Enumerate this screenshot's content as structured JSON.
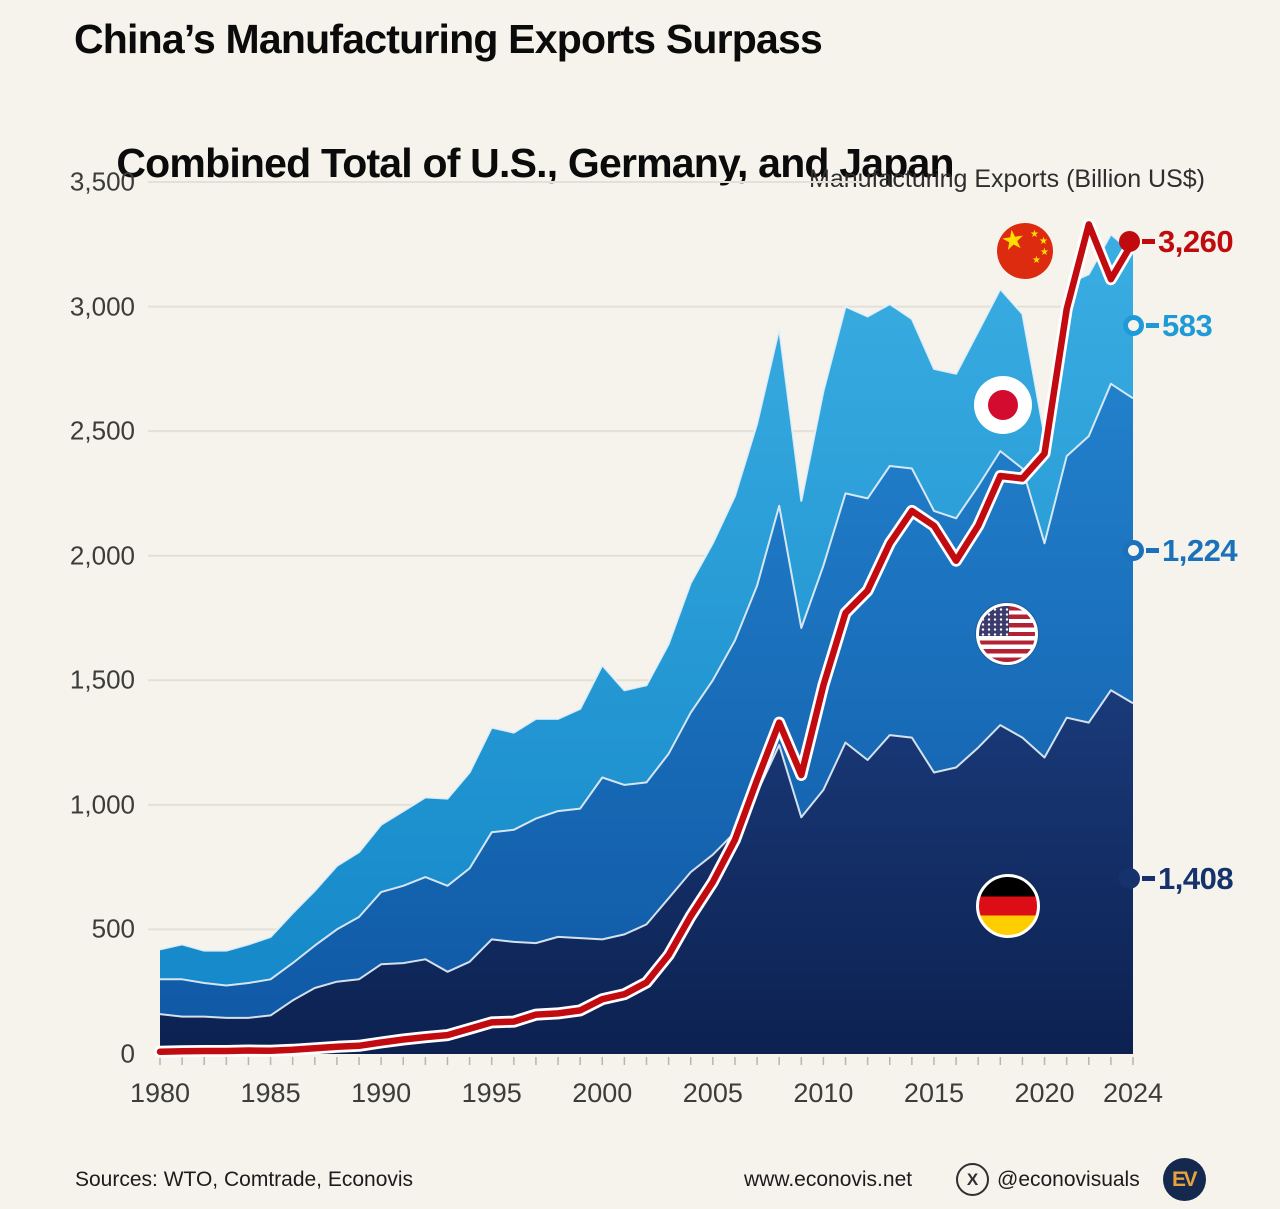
{
  "title": {
    "line1": "China’s Manufacturing Exports Surpass",
    "line2": "Combined Total of U.S., Germany, and Japan"
  },
  "legend_label": "Manufacturing Exports (Billion US$)",
  "footer": {
    "sources": "Sources: WTO, Comtrade, Econovis",
    "website": "www.econovis.net",
    "social_handle": "@econovisuals"
  },
  "icons": {
    "x_logo": "X",
    "ev_logo": "EV"
  },
  "colors": {
    "background": "#f5f3ec",
    "gridline": "#e3e0d7",
    "axis_text": "#3c3c3a",
    "china_line": "#c20b10",
    "japan_fill": "#1f9ad8",
    "us_fill": "#1b72ba",
    "germany_fill": "#16326d"
  },
  "chart_data": {
    "type": "area",
    "stacked": true,
    "title": "Manufacturing Exports (Billion US$)",
    "ylim": [
      0,
      3500
    ],
    "ytick_labels": [
      "3,500",
      "3,000",
      "2,500",
      "2,000",
      "1,500",
      "1,000",
      "500",
      "0"
    ],
    "xtick_labels": [
      "1980",
      "1985",
      "1990",
      "1995",
      "2000",
      "2005",
      "2010",
      "2015",
      "2020",
      "2024"
    ],
    "x": [
      1980,
      1981,
      1982,
      1983,
      1984,
      1985,
      1986,
      1987,
      1988,
      1989,
      1990,
      1991,
      1992,
      1993,
      1994,
      1995,
      1996,
      1997,
      1998,
      1999,
      2000,
      2001,
      2002,
      2003,
      2004,
      2005,
      2006,
      2007,
      2008,
      2009,
      2010,
      2011,
      2012,
      2013,
      2014,
      2015,
      2016,
      2017,
      2018,
      2019,
      2020,
      2021,
      2022,
      2023,
      2024
    ],
    "series": [
      {
        "name": "Germany",
        "type": "area",
        "stack_order": 0,
        "label": "1,408",
        "label_color": "#16326d",
        "marker": "dot",
        "fill_top": "#1a3a7a",
        "fill_bottom": "#0c2150",
        "values": [
          160,
          150,
          150,
          145,
          145,
          155,
          215,
          265,
          290,
          300,
          360,
          365,
          380,
          330,
          370,
          460,
          450,
          445,
          470,
          465,
          460,
          480,
          520,
          625,
          730,
          800,
          890,
          1050,
          1240,
          950,
          1060,
          1250,
          1180,
          1280,
          1270,
          1130,
          1150,
          1230,
          1320,
          1270,
          1190,
          1350,
          1330,
          1460,
          1408
        ]
      },
      {
        "name": "United States",
        "type": "area",
        "stack_order": 1,
        "label": "1,224",
        "label_color": "#1b72ba",
        "marker": "ring",
        "fill_top": "#2280cb",
        "fill_bottom": "#0f57a4",
        "values": [
          140,
          150,
          135,
          130,
          140,
          145,
          150,
          170,
          210,
          250,
          290,
          310,
          330,
          345,
          375,
          430,
          450,
          500,
          505,
          520,
          650,
          600,
          570,
          580,
          640,
          700,
          770,
          830,
          960,
          760,
          900,
          1000,
          1050,
          1080,
          1080,
          1050,
          1000,
          1050,
          1100,
          1080,
          860,
          1050,
          1150,
          1230,
          1224
        ]
      },
      {
        "name": "Japan",
        "type": "area",
        "stack_order": 2,
        "label": "583",
        "label_color": "#1f9ad8",
        "marker": "ring",
        "fill_top": "#3aade2",
        "fill_bottom": "#1286c7",
        "values": [
          120,
          140,
          130,
          140,
          155,
          170,
          200,
          220,
          255,
          260,
          270,
          300,
          320,
          350,
          385,
          420,
          390,
          400,
          370,
          400,
          450,
          380,
          390,
          440,
          520,
          550,
          580,
          650,
          710,
          510,
          700,
          750,
          730,
          650,
          600,
          570,
          580,
          620,
          650,
          620,
          430,
          690,
          650,
          600,
          583
        ]
      },
      {
        "name": "China",
        "type": "line",
        "label": "3,260",
        "label_color": "#bf0a0e",
        "marker": "dot",
        "line_color": "#c20b10",
        "casing_color": "#ffffff",
        "values": [
          9,
          11,
          12,
          12,
          14,
          13,
          17,
          23,
          29,
          33,
          46,
          58,
          68,
          76,
          101,
          127,
          130,
          158,
          163,
          175,
          220,
          240,
          287,
          397,
          553,
          690,
          860,
          1100,
          1330,
          1120,
          1480,
          1770,
          1860,
          2050,
          2180,
          2120,
          1980,
          2120,
          2320,
          2310,
          2410,
          2990,
          3330,
          3110,
          3260
        ]
      }
    ]
  }
}
